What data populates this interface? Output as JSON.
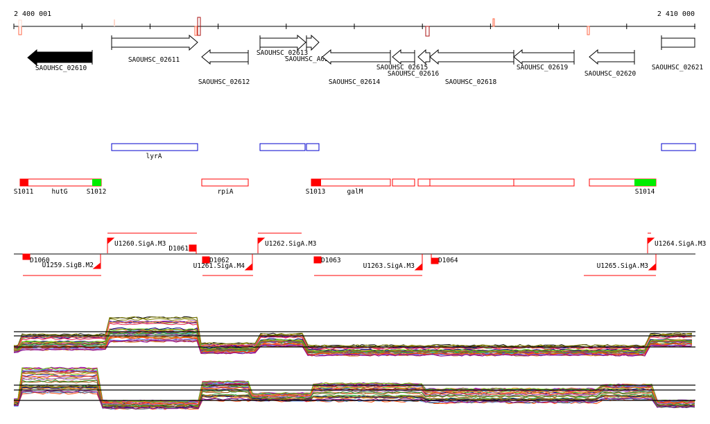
{
  "coordinates": {
    "start_label": "2 400 001",
    "end_label": "2 410 000"
  },
  "genes": [
    {
      "name": "SAOUHSC_02610",
      "strand": "-",
      "filled": true
    },
    {
      "name": "SAOUHSC_02611",
      "strand": "+"
    },
    {
      "name": "SAOUHSC_02612",
      "strand": "-"
    },
    {
      "name": "SAOUHSC_02613",
      "strand": "+"
    },
    {
      "name": "SAOUHSC_A02483",
      "strand": "+"
    },
    {
      "name": "SAOUHSC_02614",
      "strand": "-"
    },
    {
      "name": "SAOUHSC_02615",
      "strand": "-"
    },
    {
      "name": "SAOUHSC_02616",
      "strand": "-"
    },
    {
      "name": "SAOUHSC_02618",
      "strand": "-"
    },
    {
      "name": "SAOUHSC_02619",
      "strand": "-"
    },
    {
      "name": "SAOUHSC_02620",
      "strand": "-"
    },
    {
      "name": "SAOUHSC_02621",
      "strand": "+"
    }
  ],
  "operon_track": {
    "labels": [
      "lyrA"
    ]
  },
  "transcript_track": {
    "labels": [
      "S1011",
      "hutG",
      "S1012",
      "rpiA",
      "S1013",
      "galM",
      "S1014"
    ]
  },
  "promoter_track": {
    "labels": [
      "D1060",
      "U1259.SigB.M2",
      "U1260.SigA.M3",
      "D1061",
      "D1062",
      "U1261.SigA.M4",
      "U1262.SigA.M3",
      "D1063",
      "U1263.SigA.M3",
      "D1064",
      "U1264.SigA.M3",
      "U1265.SigA.M3"
    ]
  },
  "colors": {
    "transcript": "#ff0000",
    "start_site": "#00ee00",
    "operon": "#0000cc",
    "axis_marker_dark": "#aa1111",
    "axis_marker_light": "#ff6644"
  }
}
